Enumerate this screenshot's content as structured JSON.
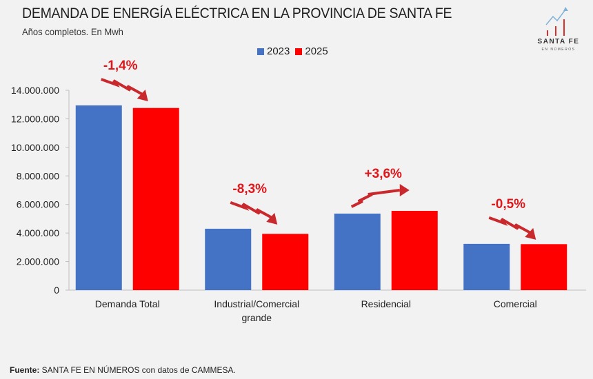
{
  "header": {
    "title": "DEMANDA DE ENERGÍA ELÉCTRICA EN LA PROVINCIA DE SANTA FE",
    "subtitle": "Años completos. En Mwh"
  },
  "logo": {
    "text": "SANTA FE",
    "subtext": "EN NÚMEROS"
  },
  "source": {
    "label": "Fuente:",
    "text": " SANTA FE EN NÚMEROS con datos de CAMMESA."
  },
  "chart_data": {
    "type": "bar",
    "title": "DEMANDA DE ENERGÍA ELÉCTRICA EN LA PROVINCIA DE SANTA FE",
    "subtitle": "Años completos. En Mwh",
    "categories": [
      "Demanda Total",
      "Industrial/Comercial grande",
      "Residencial",
      "Comercial"
    ],
    "category_lines": [
      [
        "Demanda Total"
      ],
      [
        "Industrial/Comercial",
        "grande"
      ],
      [
        "Residencial"
      ],
      [
        "Comercial"
      ]
    ],
    "series": [
      {
        "name": "2023",
        "color": "#4472c4",
        "values": [
          12940000,
          4300000,
          5360000,
          3240000
        ]
      },
      {
        "name": "2025",
        "color": "#ff0000",
        "values": [
          12760000,
          3940000,
          5550000,
          3220000
        ]
      }
    ],
    "annotations": [
      {
        "category": "Demanda Total",
        "text": "-1,4%",
        "direction": "down"
      },
      {
        "category": "Industrial/Comercial grande",
        "text": "-8,3%",
        "direction": "down"
      },
      {
        "category": "Residencial",
        "text": "+3,6%",
        "direction": "up"
      },
      {
        "category": "Comercial",
        "text": "-0,5%",
        "direction": "down"
      }
    ],
    "yticks": [
      "0",
      "2.000.000",
      "4.000.000",
      "6.000.000",
      "8.000.000",
      "10.000.000",
      "12.000.000",
      "14.000.000"
    ],
    "ylim": [
      0,
      14000000
    ],
    "grid": false,
    "legend": "top-center",
    "annotation_color": "#e0161b"
  }
}
